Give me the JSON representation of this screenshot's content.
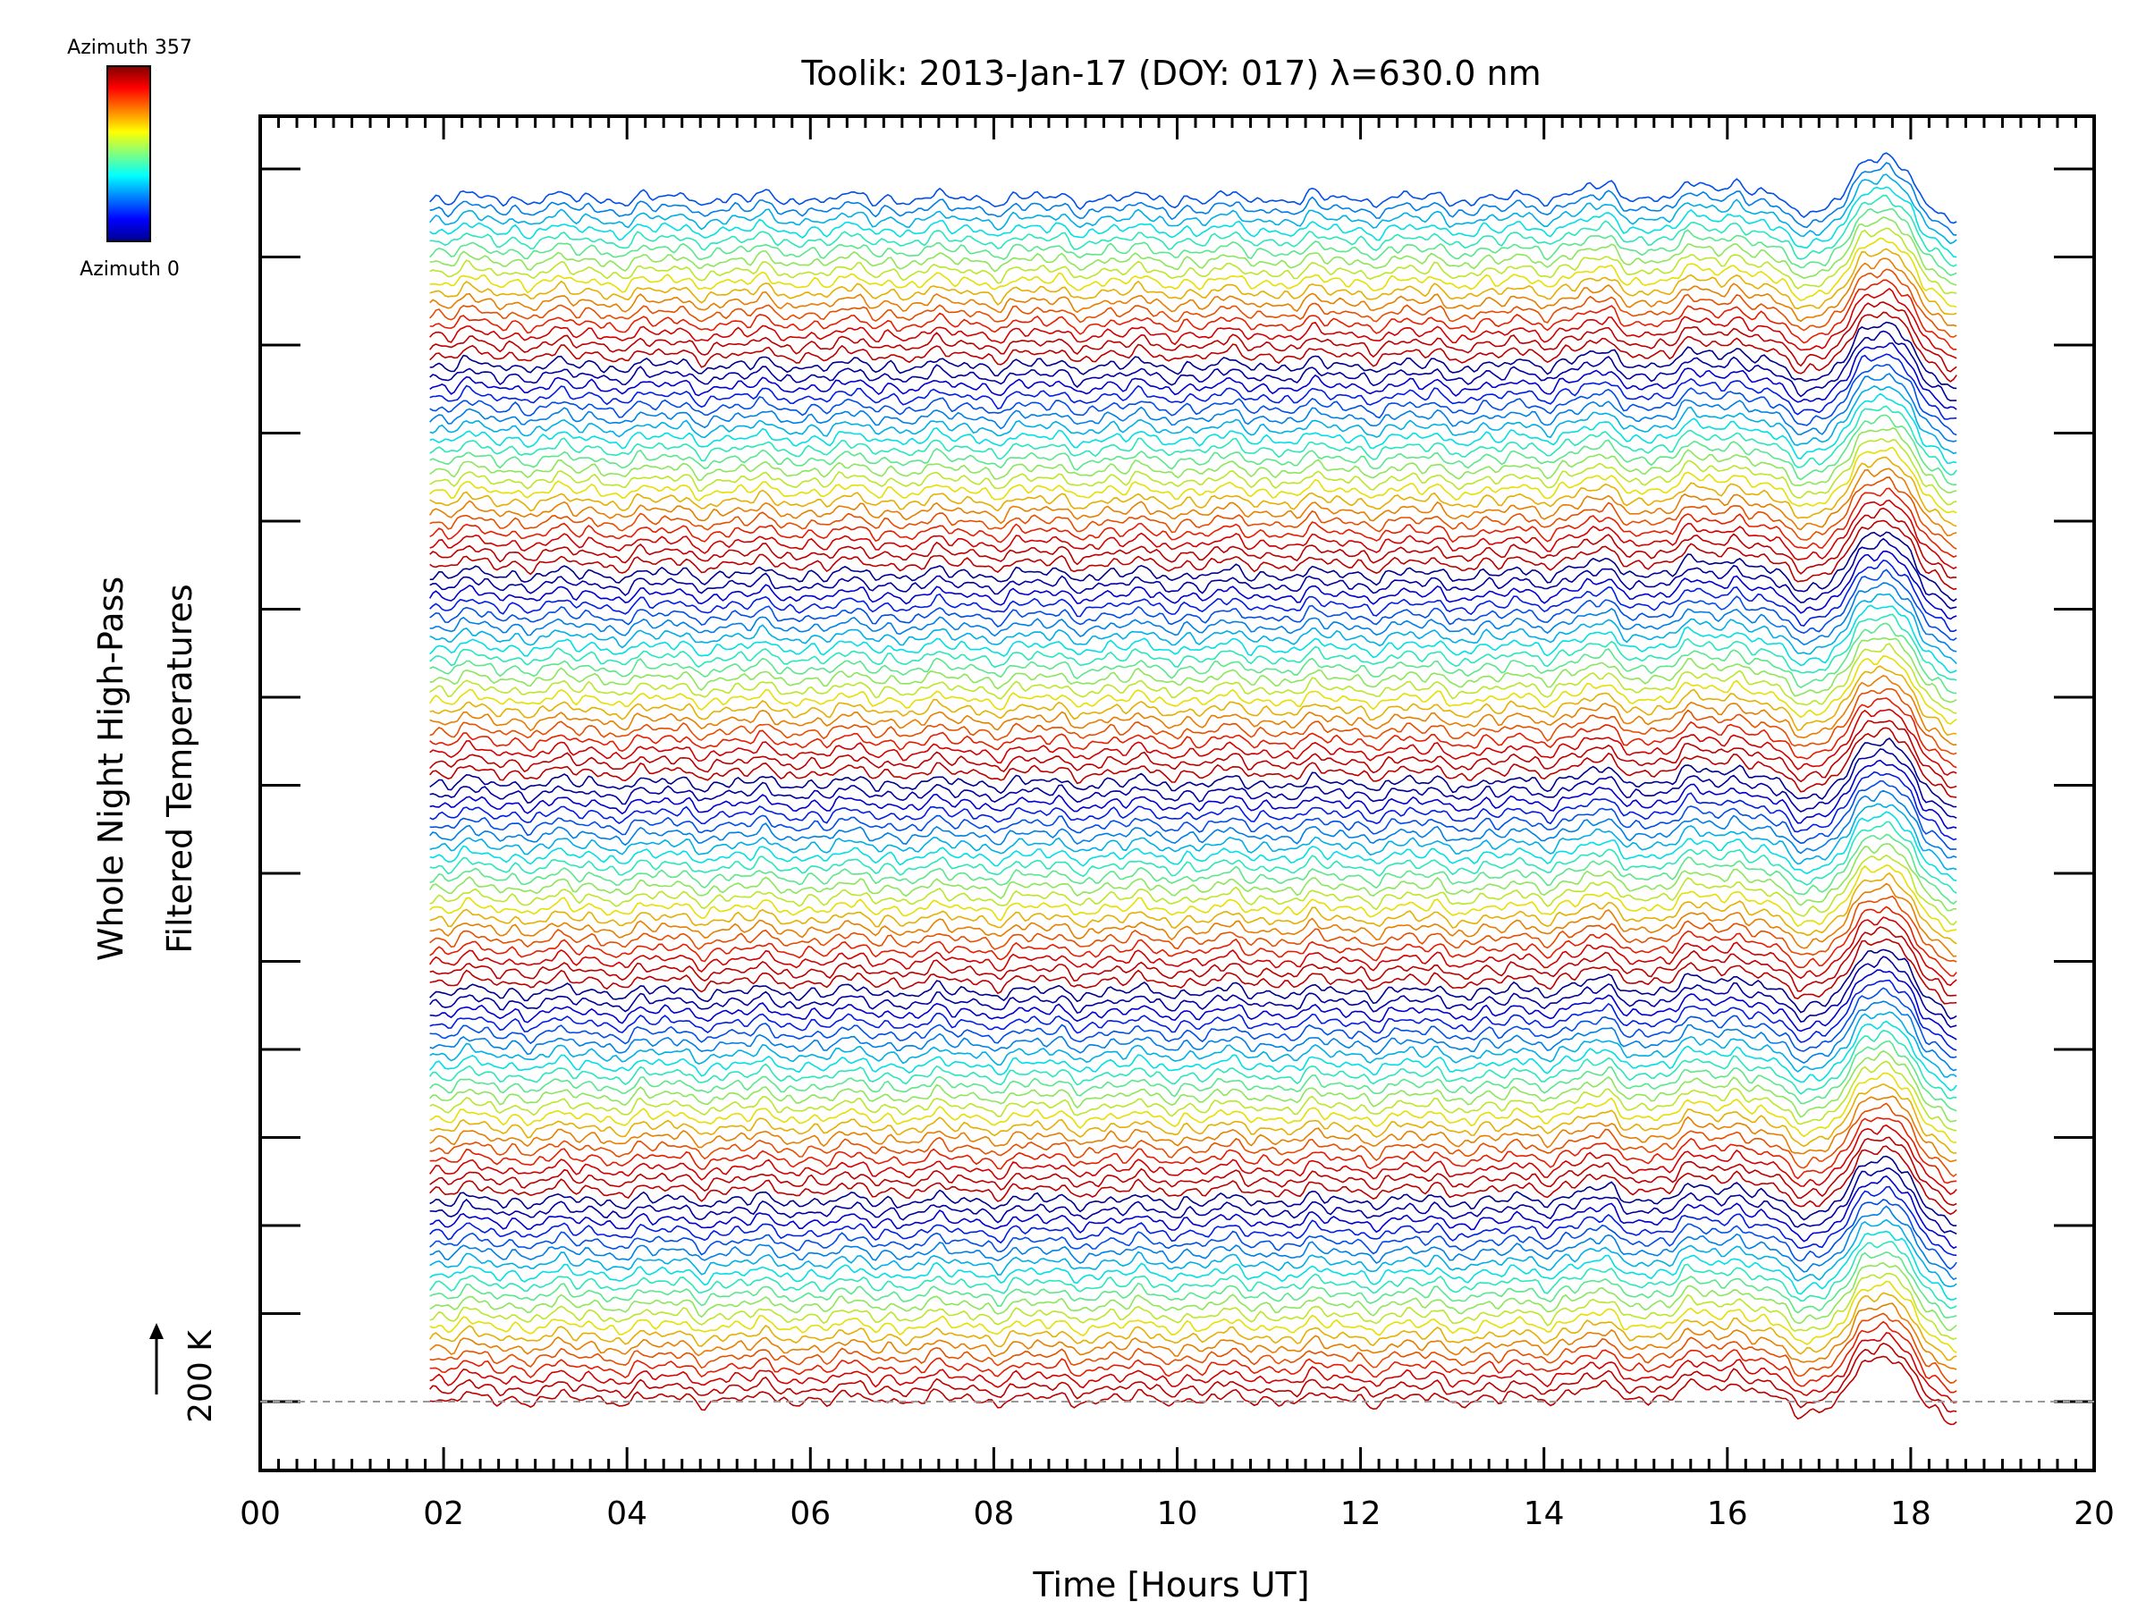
{
  "chart_data": {
    "type": "line",
    "title": "Toolik: 2013-Jan-17 (DOY: 017) λ=630.0 nm",
    "xlabel": "Time [Hours UT]",
    "ylabel_line1": "Whole Night High-Pass",
    "ylabel_line2": "Filtered Temperatures",
    "xlim": [
      0,
      20
    ],
    "x_tick_labels": [
      "00",
      "02",
      "04",
      "06",
      "08",
      "10",
      "12",
      "14",
      "16",
      "18",
      "20"
    ],
    "x_ticks": [
      0,
      2,
      4,
      6,
      8,
      10,
      12,
      14,
      16,
      18,
      20
    ],
    "time_range": [
      1.85,
      18.5
    ],
    "n_traces": 116,
    "scale_bar_label": "200 K",
    "colorbar": {
      "top_label": "Azimuth 357",
      "bottom_label": "Azimuth 0",
      "colormap": "jet",
      "range": [
        0,
        357
      ]
    },
    "features": [
      {
        "x": 14.5,
        "amplitude": 0.35,
        "note": "broad bump"
      },
      {
        "x": 15.6,
        "amplitude": 0.3,
        "note": "small bump"
      },
      {
        "x": 16.2,
        "amplitude": 0.45,
        "note": "bump before dip"
      },
      {
        "x": 16.9,
        "amplitude": -0.6,
        "note": "dip"
      },
      {
        "x": 17.65,
        "amplitude": 1.2,
        "note": "large peak"
      },
      {
        "x": 18.5,
        "amplitude": -0.7,
        "note": "decline at end"
      }
    ],
    "colors": {
      "axis": "#000000",
      "baseline_dash": "#999999"
    }
  }
}
